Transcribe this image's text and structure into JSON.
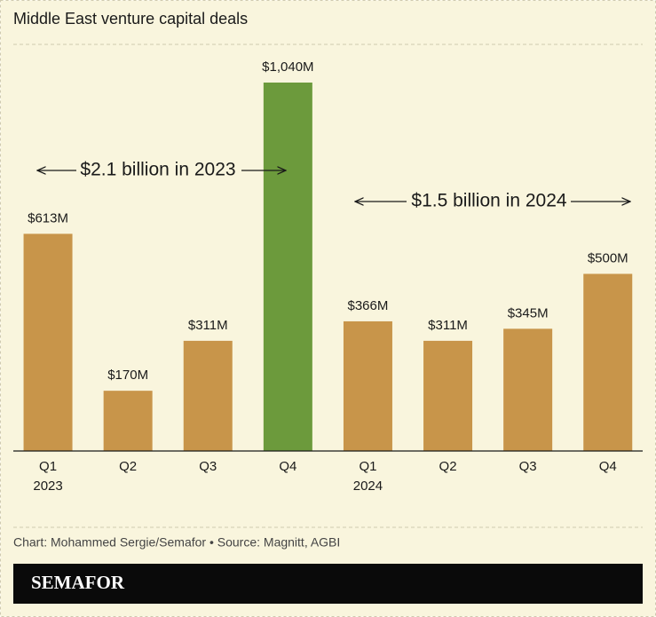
{
  "chart_data": {
    "type": "bar",
    "title": "Middle East venture capital deals",
    "categories": [
      "Q1",
      "Q2",
      "Q3",
      "Q4",
      "Q1",
      "Q2",
      "Q3",
      "Q4"
    ],
    "year_labels": [
      "2023",
      null,
      null,
      null,
      "2024",
      null,
      null,
      null
    ],
    "values": [
      613,
      170,
      311,
      1040,
      366,
      311,
      345,
      500
    ],
    "value_labels": [
      "$613M",
      "$170M",
      "$311M",
      "$1,040M",
      "$366M",
      "$311M",
      "$345M",
      "$500M"
    ],
    "colors": [
      "#c8954a",
      "#c8954a",
      "#c8954a",
      "#6c9a3c",
      "#c8954a",
      "#c8954a",
      "#c8954a",
      "#c8954a"
    ],
    "annotations": [
      "$2.1 billion in 2023",
      "$1.5 billion in 2024"
    ],
    "source": "Chart: Mohammed Sergie/Semafor • Source: Magnitt, AGBI",
    "logo": "SEMAFOR"
  }
}
